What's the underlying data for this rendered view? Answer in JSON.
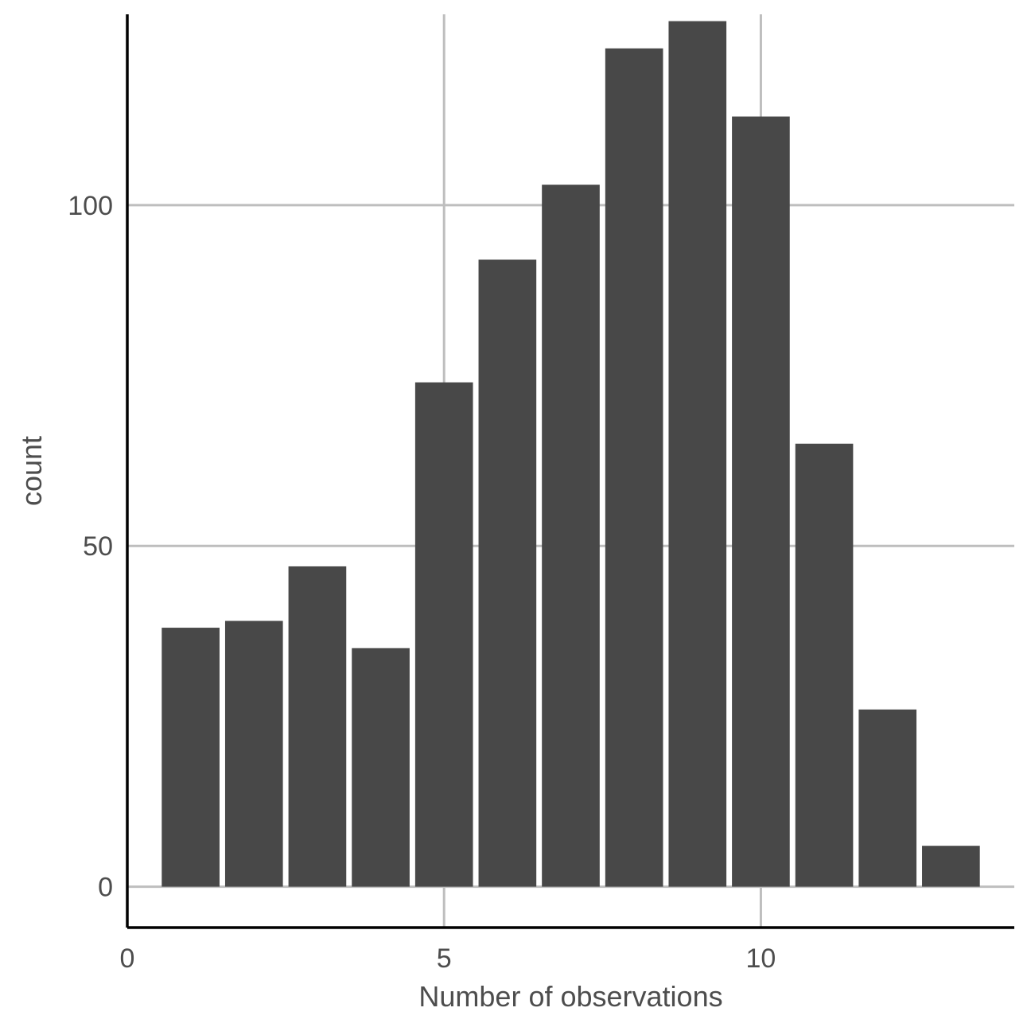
{
  "chart_data": {
    "type": "bar",
    "x": [
      1,
      2,
      3,
      4,
      5,
      6,
      7,
      8,
      9,
      10,
      11,
      12,
      13
    ],
    "values": [
      38,
      39,
      47,
      35,
      74,
      92,
      103,
      123,
      127,
      113,
      65,
      26,
      6
    ],
    "bin_width": 1,
    "xlabel": "Number of observations",
    "ylabel": "count",
    "xlim": [
      0,
      14
    ],
    "ylim": [
      -6,
      128
    ],
    "xticks": [
      0,
      5,
      10
    ],
    "xtick_labels": [
      "0",
      "5",
      "10"
    ],
    "yticks": [
      0,
      50,
      100
    ],
    "ytick_labels": [
      "0",
      "50",
      "100"
    ],
    "grid": true,
    "legend": "none",
    "colors": {
      "bar": "#484848",
      "grid": "#bebebe",
      "axis": "#000000",
      "text": "#4d4d4d"
    }
  }
}
